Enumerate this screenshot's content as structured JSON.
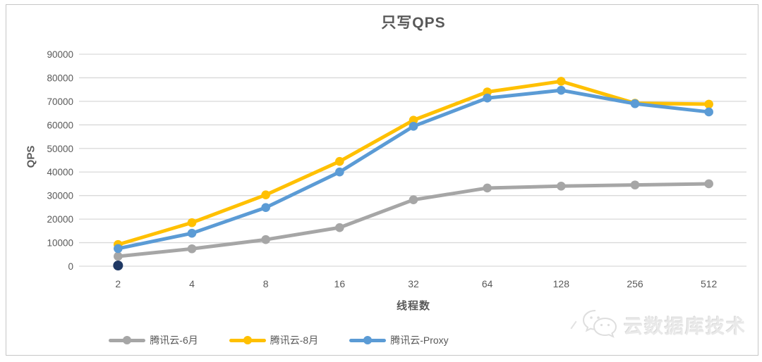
{
  "chart_data": {
    "type": "line",
    "title": "只写QPS",
    "xlabel": "线程数",
    "ylabel": "QPS",
    "categories": [
      "2",
      "4",
      "8",
      "16",
      "32",
      "64",
      "128",
      "256",
      "512"
    ],
    "ylim": [
      0,
      90000
    ],
    "ytick_step": 10000,
    "grid": true,
    "legend_position": "bottom",
    "series": [
      {
        "name": "腾讯云-6月",
        "color": "#A6A6A6",
        "values": [
          4200,
          7400,
          11300,
          16400,
          28200,
          33200,
          34000,
          34500,
          35000
        ]
      },
      {
        "name": "腾讯云-8月",
        "color": "#FFC000",
        "values": [
          9200,
          18500,
          30300,
          44500,
          62000,
          74000,
          78500,
          69200,
          68800
        ]
      },
      {
        "name": "腾讯云-Proxy",
        "color": "#5B9BD5",
        "values": [
          7500,
          14000,
          24900,
          40000,
          59400,
          71400,
          74700,
          69000,
          65500
        ]
      }
    ],
    "extra_points": [
      {
        "category": "2",
        "value": 300,
        "color": "#1F3864",
        "label": "dark-navy-point"
      }
    ]
  },
  "watermark": {
    "text": "云数据库技术",
    "icon": "wechat-icon"
  }
}
